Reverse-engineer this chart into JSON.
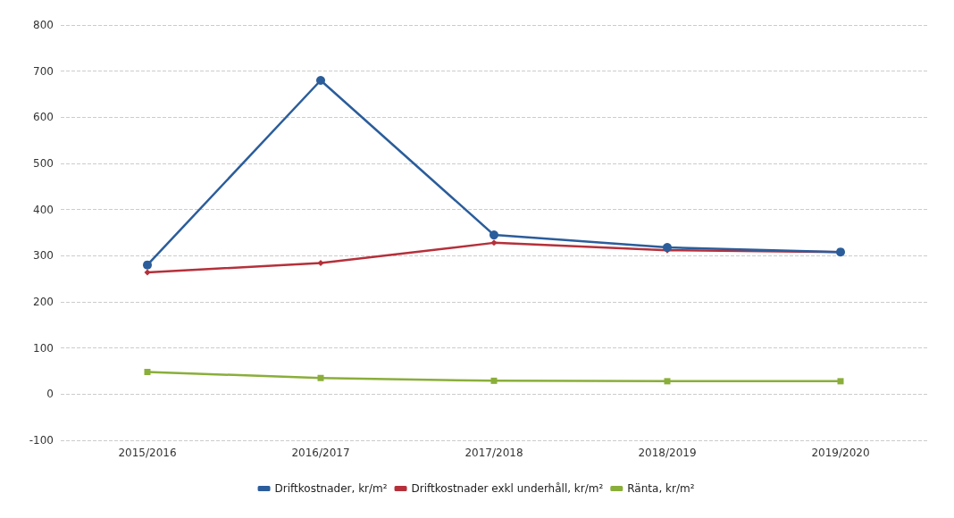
{
  "chart_data": {
    "type": "line",
    "categories": [
      "2015/2016",
      "2016/2017",
      "2017/2018",
      "2018/2019",
      "2019/2020"
    ],
    "series": [
      {
        "name": "Driftkostnader, kr/m²",
        "color": "#2b5d9b",
        "marker": "circle",
        "values": [
          280,
          680,
          345,
          318,
          308
        ]
      },
      {
        "name": "Driftkostnader exkl underhåll, kr/m²",
        "color": "#b5303a",
        "marker": "diamond",
        "values": [
          264,
          284,
          328,
          312,
          308
        ]
      },
      {
        "name": "Ränta, kr/m²",
        "color": "#8aae3a",
        "marker": "square",
        "values": [
          48,
          35,
          29,
          28,
          28
        ]
      }
    ],
    "ylim": [
      -100,
      800
    ],
    "yticks": [
      -100,
      0,
      100,
      200,
      300,
      400,
      500,
      600,
      700,
      800
    ],
    "grid": "y",
    "legend": "bottom"
  }
}
